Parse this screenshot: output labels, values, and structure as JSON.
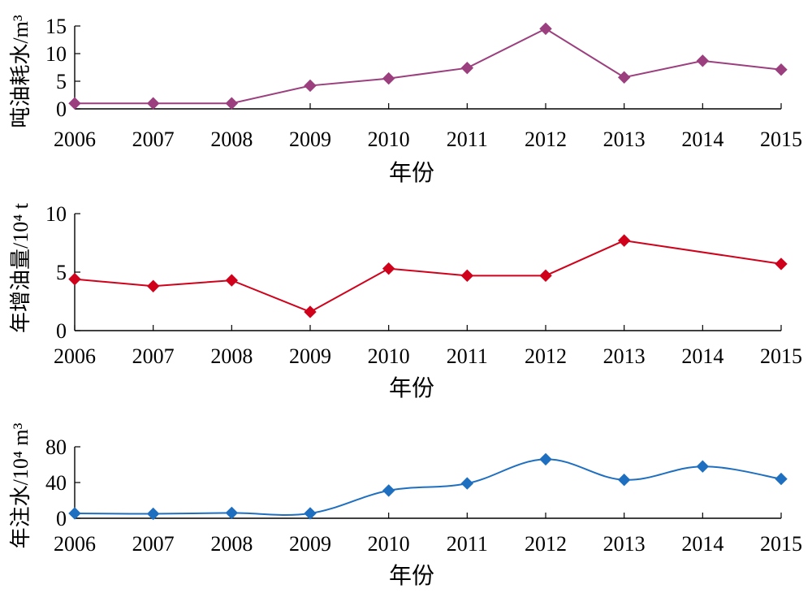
{
  "chart_data": [
    {
      "type": "line",
      "xlabel": "年份",
      "ylabel": "吨油耗水/m³",
      "categories": [
        "2006",
        "2007",
        "2008",
        "2009",
        "2010",
        "2011",
        "2012",
        "2013",
        "2014",
        "2015"
      ],
      "yticks": [
        "0",
        "5",
        "10",
        "15"
      ],
      "ylim": [
        0,
        15
      ],
      "color": "#9b3f7e",
      "series": [
        {
          "values": [
            1.0,
            1.0,
            1.0,
            4.2,
            5.5,
            7.4,
            14.5,
            5.7,
            8.7,
            7.1
          ]
        }
      ]
    },
    {
      "type": "line",
      "xlabel": "年份",
      "ylabel": "年增油量/10⁴ t",
      "categories": [
        "2006",
        "2007",
        "2008",
        "2009",
        "2010",
        "2011",
        "2012",
        "2013",
        "2014",
        "2015"
      ],
      "yticks": [
        "0",
        "5",
        "10"
      ],
      "ylim": [
        0,
        10
      ],
      "color": "#d0021b",
      "series": [
        {
          "values": [
            4.4,
            3.8,
            4.3,
            1.6,
            5.3,
            4.7,
            4.7,
            7.7,
            null,
            5.7
          ]
        }
      ]
    },
    {
      "type": "line",
      "xlabel": "年份",
      "ylabel": "年注水/10⁴ m³",
      "categories": [
        "2006",
        "2007",
        "2008",
        "2009",
        "2010",
        "2011",
        "2012",
        "2013",
        "2014",
        "2015"
      ],
      "yticks": [
        "0",
        "40",
        "80"
      ],
      "ylim": [
        0,
        80
      ],
      "color": "#1f6fc0",
      "series": [
        {
          "values": [
            5.5,
            5.0,
            6.0,
            5.5,
            31.0,
            39.0,
            66.0,
            43.0,
            58.0,
            44.0
          ]
        }
      ]
    }
  ]
}
